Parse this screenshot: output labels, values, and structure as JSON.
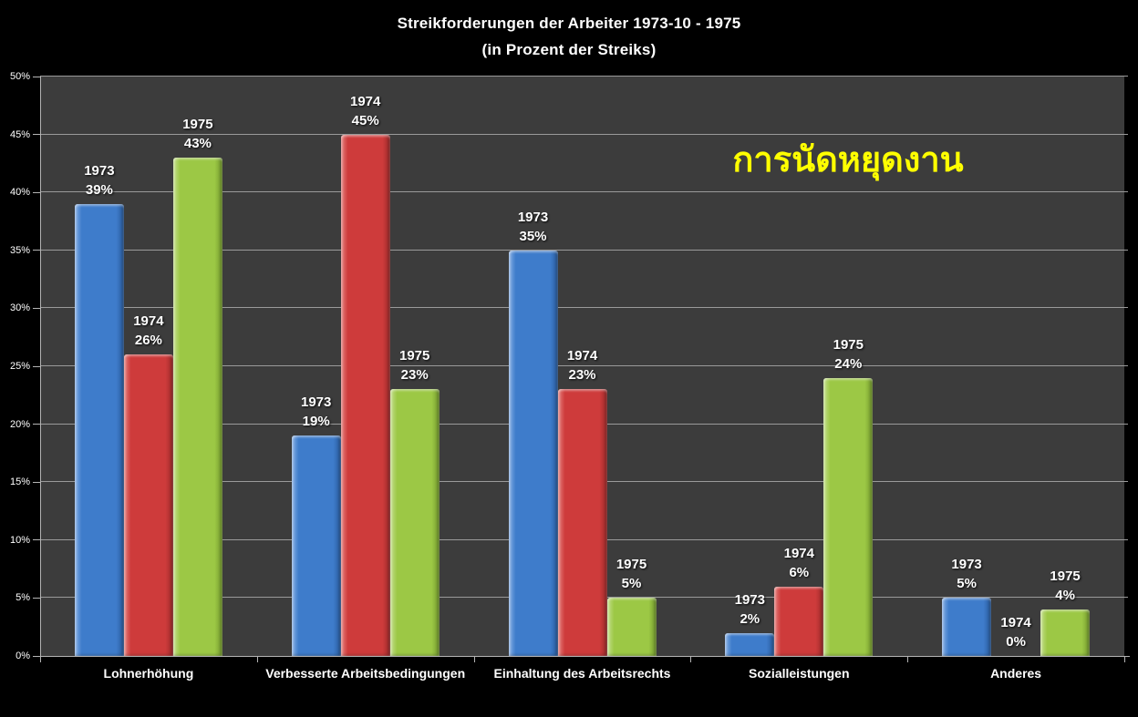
{
  "title": {
    "line1": "Streikforderungen der Arbeiter 1973-10 - 1975",
    "line2": "(in Prozent der Streiks)"
  },
  "annotation": {
    "text": "การนัดหยุดงาน",
    "color": "#FFFF00"
  },
  "chart_data": {
    "type": "bar",
    "title": "Streikforderungen der Arbeiter 1973-10 - 1975 (in Prozent der Streiks)",
    "categories": [
      "Lohnerhöhung",
      "Verbesserte Arbeitsbedingungen",
      "Einhaltung des Arbeitsrechts",
      "Sozialleistungen",
      "Anderes"
    ],
    "series": [
      {
        "name": "1973",
        "color": "#3E7CCB",
        "color_light": "#85AEE4",
        "color_dark": "#2A5C9E",
        "values": [
          39,
          19,
          35,
          2,
          5
        ],
        "labels": [
          "39%",
          "19%",
          "35%",
          "2%",
          "5%"
        ]
      },
      {
        "name": "1974",
        "color": "#CE3B3B",
        "color_light": "#E57F7C",
        "color_dark": "#9E2B2B",
        "values": [
          26,
          45,
          23,
          6,
          0
        ],
        "labels": [
          "26%",
          "45%",
          "23%",
          "6%",
          "0%"
        ]
      },
      {
        "name": "1975",
        "color": "#9CC845",
        "color_light": "#C4DE8B",
        "color_dark": "#749A2E",
        "values": [
          43,
          23,
          5,
          24,
          4
        ],
        "labels": [
          "43%",
          "23%",
          "5%",
          "24%",
          "4%"
        ]
      }
    ],
    "xlabel": "",
    "ylabel": "",
    "ylim": [
      0,
      50
    ],
    "y_ticks": [
      "0%",
      "5%",
      "10%",
      "15%",
      "20%",
      "25%",
      "30%",
      "35%",
      "40%",
      "45%",
      "50%"
    ],
    "grid": true,
    "legend": "none",
    "colors_meta": {
      "page_bg": "#000000",
      "plot_bg": "#3C3C3C",
      "grid_color": "#9A9A9A",
      "axis_color": "#B4B4B4",
      "label_color": "#FFFFFF"
    }
  }
}
